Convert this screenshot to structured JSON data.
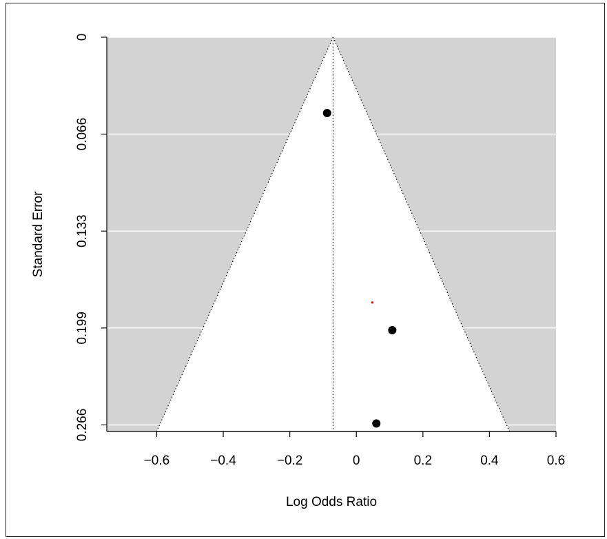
{
  "chart_data": {
    "type": "scatter",
    "subtype": "funnel-plot",
    "title": "",
    "xlabel": "Log Odds Ratio",
    "ylabel": "Standard Error",
    "xlim": [
      -0.75,
      0.6
    ],
    "ylim": [
      0.2705,
      0
    ],
    "y_axis_reversed": true,
    "x_ticks": [
      -0.6,
      -0.4,
      -0.2,
      0,
      0.2,
      0.4,
      0.6
    ],
    "x_tick_labels": [
      "−0.6",
      "−0.4",
      "−0.2",
      "0",
      "0.2",
      "0.4",
      "0.6"
    ],
    "y_ticks": [
      0,
      0.0665,
      0.133,
      0.1995,
      0.266
    ],
    "y_tick_labels": [
      "0",
      "0.066",
      "0.133",
      "0.199",
      "0.266"
    ],
    "grid": "horizontal, white",
    "funnel": {
      "center": -0.07,
      "multiplier": 1.96,
      "region_outside_color": "#d3d3d3",
      "region_inside_color": "#ffffff"
    },
    "points": [
      {
        "x": -0.088,
        "y": 0.052
      },
      {
        "x": 0.108,
        "y": 0.201
      },
      {
        "x": 0.06,
        "y": 0.265
      }
    ],
    "imputed_points": [
      {
        "x": 0.048,
        "y": 0.182
      }
    ],
    "point_color": "#000000",
    "imputed_point_color": "#ff0000"
  }
}
